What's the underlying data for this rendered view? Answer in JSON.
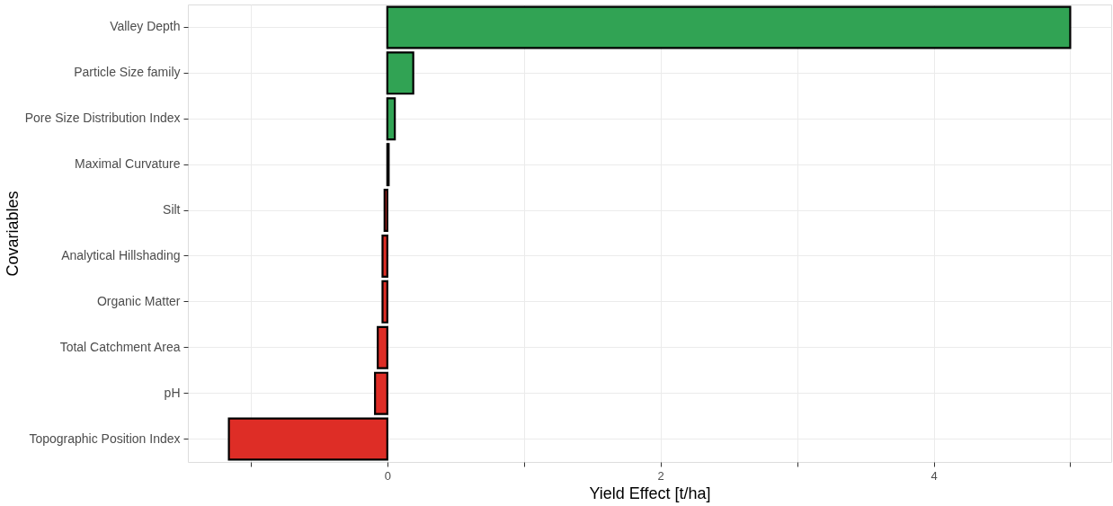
{
  "chart_data": {
    "type": "bar",
    "orientation": "horizontal",
    "xlabel": "Yield Effect [t/ha]",
    "ylabel": "Covariables",
    "categories": [
      "Valley Depth",
      "Particle Size family",
      "Pore Size Distribution Index",
      "Maximal Curvature",
      "Silt",
      "Analytical Hillshading",
      "Organic Matter",
      "Total Catchment Area",
      "pH",
      "Topographic Position Index"
    ],
    "values": [
      5.0,
      0.19,
      0.055,
      0.01,
      -0.02,
      -0.035,
      -0.035,
      -0.07,
      -0.09,
      -1.16
    ],
    "colors": [
      "#31a354",
      "#31a354",
      "#31a354",
      "#31a354",
      "#de2d26",
      "#de2d26",
      "#de2d26",
      "#de2d26",
      "#de2d26",
      "#de2d26"
    ],
    "xlim": [
      -1.46,
      5.3
    ],
    "xticks": [
      {
        "value": -1,
        "label": null
      },
      0,
      {
        "value": 1,
        "label": null
      },
      2,
      {
        "value": 3,
        "label": null
      },
      4,
      {
        "value": 5,
        "label": null
      }
    ],
    "grid": true
  }
}
